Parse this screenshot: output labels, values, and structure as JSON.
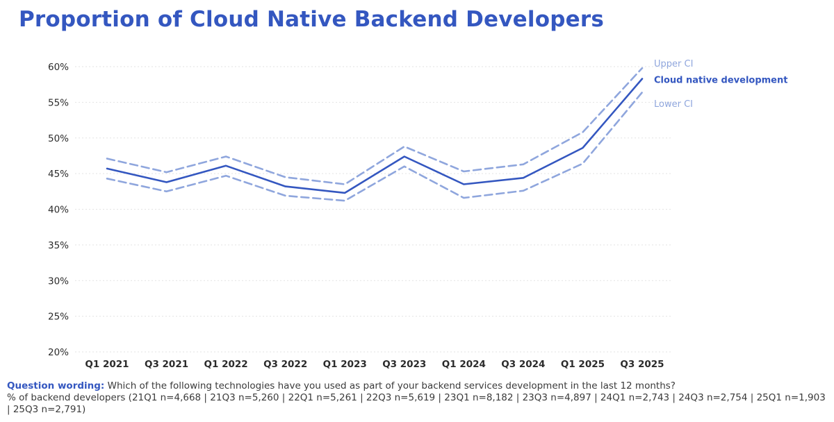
{
  "page": {
    "title": "Proportion of Cloud Native Backend Developers"
  },
  "footnote": {
    "question_label": "Question wording:",
    "question_text": " Which of the following technologies have you used as part of your backend services development in the last 12 months?",
    "sample_line": "% of backend developers (21Q1 n=4,668 | 21Q3 n=5,260 | 22Q1 n=5,261 | 22Q3 n=5,619 | 23Q1 n=8,182 | 23Q3 n=4,897 | 24Q1 n=2,743 | 24Q3 n=2,754 | 25Q1  n=1,903 | 25Q3 n=2,791)"
  },
  "chart_data": {
    "type": "line",
    "title": "Proportion of Cloud Native Backend Developers",
    "xlabel": "",
    "ylabel": "",
    "categories": [
      "Q1 2021",
      "Q3 2021",
      "Q1 2022",
      "Q3 2022",
      "Q1 2023",
      "Q3 2023",
      "Q1 2024",
      "Q3 2024",
      "Q1 2025",
      "Q3 2025"
    ],
    "ylim": [
      20,
      60
    ],
    "yticks": [
      20,
      25,
      30,
      35,
      40,
      45,
      50,
      55,
      60
    ],
    "ytick_labels": [
      "20%",
      "25%",
      "30%",
      "35%",
      "40%",
      "45%",
      "50%",
      "55%",
      "60%"
    ],
    "grid": "horizontal dotted",
    "legend_placement": "right, at line ends",
    "series": [
      {
        "name": "Upper CI",
        "style": "dashed",
        "color": "#8fa6dd",
        "values": [
          47.1,
          45.2,
          47.4,
          44.5,
          43.5,
          48.8,
          45.3,
          46.3,
          50.8,
          59.8
        ]
      },
      {
        "name": "Cloud native development",
        "style": "solid",
        "color": "#3457c0",
        "values": [
          45.7,
          43.8,
          46.1,
          43.2,
          42.3,
          47.4,
          43.5,
          44.4,
          48.6,
          58.3
        ]
      },
      {
        "name": "Lower CI",
        "style": "dashed",
        "color": "#8fa6dd",
        "values": [
          44.3,
          42.5,
          44.7,
          41.9,
          41.2,
          46.0,
          41.6,
          42.6,
          46.4,
          56.4
        ]
      }
    ]
  }
}
